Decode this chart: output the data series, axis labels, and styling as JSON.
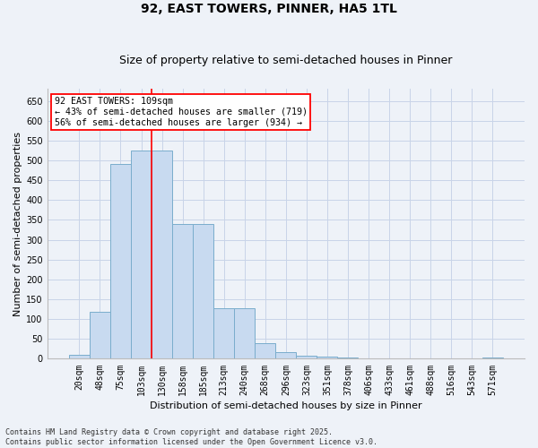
{
  "title": "92, EAST TOWERS, PINNER, HA5 1TL",
  "subtitle": "Size of property relative to semi-detached houses in Pinner",
  "xlabel": "Distribution of semi-detached houses by size in Pinner",
  "ylabel": "Number of semi-detached properties",
  "categories": [
    "20sqm",
    "48sqm",
    "75sqm",
    "103sqm",
    "130sqm",
    "158sqm",
    "185sqm",
    "213sqm",
    "240sqm",
    "268sqm",
    "296sqm",
    "323sqm",
    "351sqm",
    "378sqm",
    "406sqm",
    "433sqm",
    "461sqm",
    "488sqm",
    "516sqm",
    "543sqm",
    "571sqm"
  ],
  "values": [
    9,
    118,
    490,
    525,
    525,
    340,
    340,
    127,
    127,
    40,
    16,
    8,
    5,
    3,
    2,
    2,
    1,
    0,
    0,
    0,
    3
  ],
  "bar_color": "#c8daf0",
  "bar_edge_color": "#7aadcc",
  "grid_color": "#c8d4e8",
  "background_color": "#eef2f8",
  "vline_x_idx": 3,
  "vline_color": "red",
  "annotation_text": "92 EAST TOWERS: 109sqm\n← 43% of semi-detached houses are smaller (719)\n56% of semi-detached houses are larger (934) →",
  "annotation_box_facecolor": "white",
  "annotation_box_edgecolor": "red",
  "footer_text": "Contains HM Land Registry data © Crown copyright and database right 2025.\nContains public sector information licensed under the Open Government Licence v3.0.",
  "ylim": [
    0,
    680
  ],
  "yticks": [
    0,
    50,
    100,
    150,
    200,
    250,
    300,
    350,
    400,
    450,
    500,
    550,
    600,
    650
  ],
  "title_fontsize": 10,
  "subtitle_fontsize": 9,
  "tick_fontsize": 7,
  "ylabel_fontsize": 8,
  "xlabel_fontsize": 8,
  "footer_fontsize": 6
}
